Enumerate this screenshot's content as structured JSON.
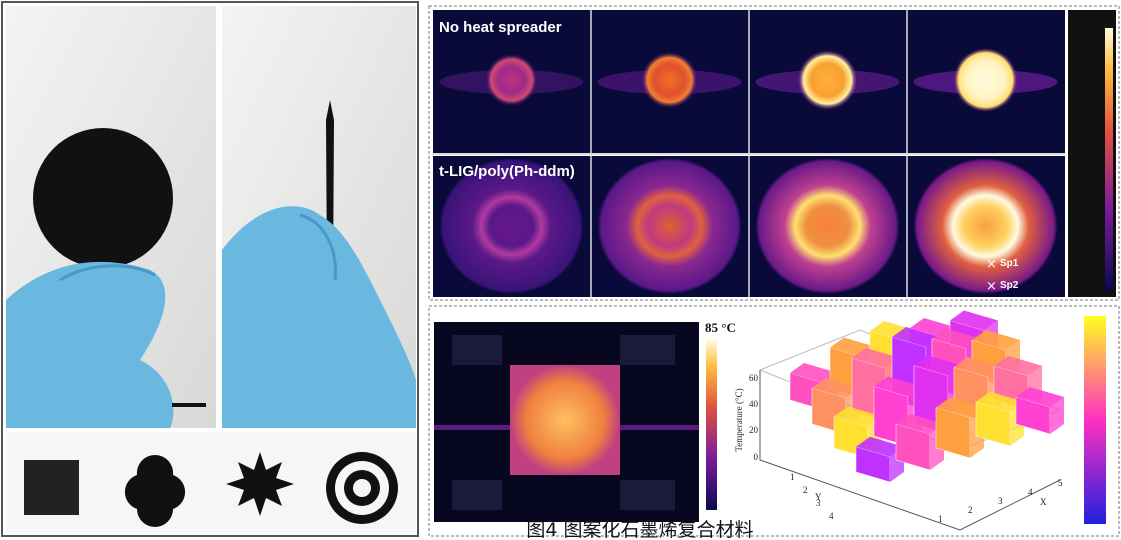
{
  "thermal": {
    "row_labels": [
      "No heat spreader",
      "t-LIG/poly(Ph-ddm)"
    ],
    "spots": [
      "Sp1",
      "Sp2"
    ]
  },
  "chart": {
    "max_label": "85 °C",
    "z_axis_label": "Temperature (°C)",
    "z_ticks": [
      "0",
      "20",
      "40",
      "60"
    ],
    "x_axis_label": "X",
    "y_axis_label": "Y",
    "x_ticks": [
      "1",
      "2",
      "3",
      "4",
      "5"
    ],
    "y_ticks": [
      "1",
      "2",
      "3",
      "4"
    ]
  },
  "caption": "图4 图案化石墨烯复合材料"
}
